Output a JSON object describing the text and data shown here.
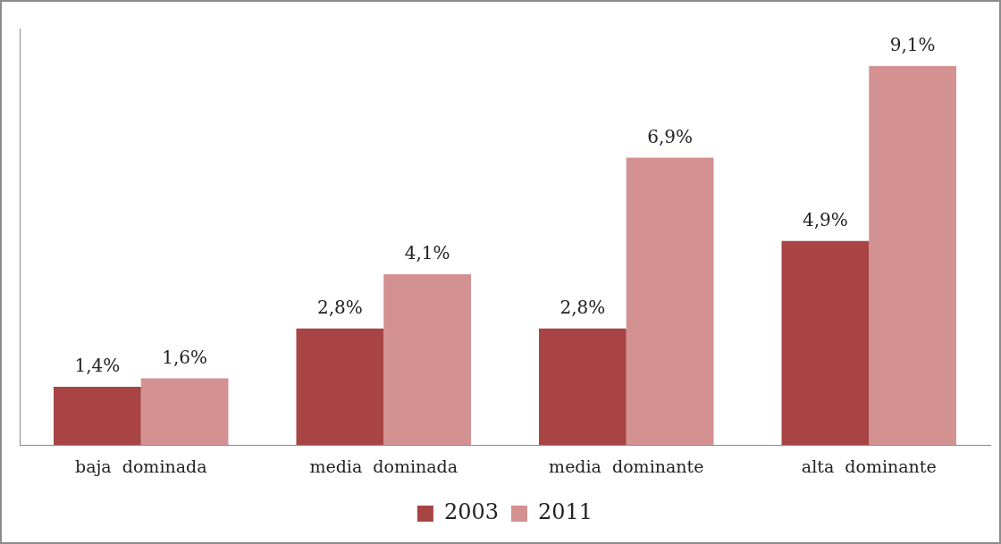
{
  "chart_data": {
    "type": "bar",
    "categories": [
      "baja  dominada",
      "media  dominada",
      "media  dominante",
      "alta  dominante"
    ],
    "series": [
      {
        "name": "2003",
        "color": "#a84444",
        "values": [
          1.4,
          2.8,
          2.8,
          4.9
        ],
        "value_labels": [
          "1,4%",
          "2,8%",
          "2,8%",
          "4,9%"
        ]
      },
      {
        "name": "2011",
        "color": "#d39191",
        "values": [
          1.6,
          4.1,
          6.9,
          9.1
        ],
        "value_labels": [
          "1,6%",
          "4,1%",
          "6,9%",
          "9,1%"
        ]
      }
    ],
    "ylim": [
      0,
      10
    ],
    "tick_labels": "x",
    "grid": false,
    "legend": "bottom"
  }
}
